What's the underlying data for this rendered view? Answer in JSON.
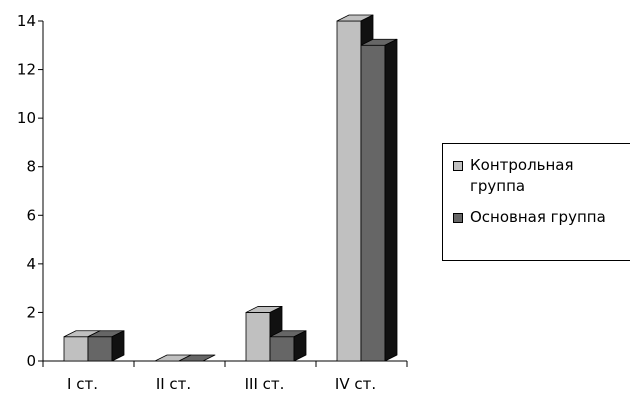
{
  "chart_data": {
    "type": "bar",
    "title": "",
    "xlabel": "",
    "ylabel": "",
    "categories": [
      "I ст.",
      "II ст.",
      "III ст.",
      "IV ст."
    ],
    "series": [
      {
        "name": "Контрольная группа",
        "values": [
          1,
          0,
          2,
          14
        ],
        "color": "#c0c0c0"
      },
      {
        "name": "Основная группа",
        "values": [
          1,
          0,
          1,
          13
        ],
        "color": "#666666"
      }
    ],
    "ylim": [
      0,
      14
    ],
    "yticks": [
      0,
      2,
      4,
      6,
      8,
      10,
      12,
      14
    ],
    "grid": false,
    "style": "3d-columns",
    "legend_position": "right"
  }
}
